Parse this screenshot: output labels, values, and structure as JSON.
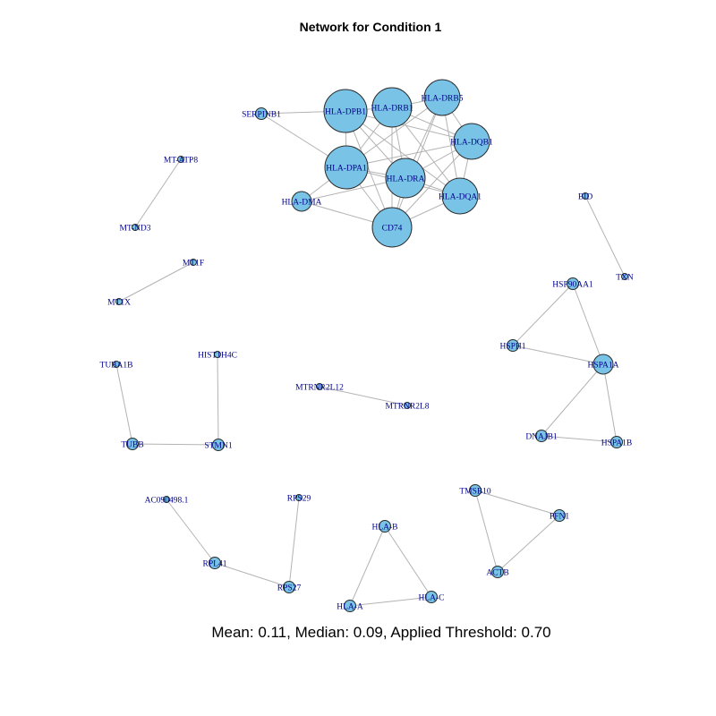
{
  "title": "Network for Condition 1",
  "caption": "Mean: 0.11, Median: 0.09, Applied Threshold: 0.70",
  "colors": {
    "node_fill": "#79c3e6",
    "node_stroke": "#2b2b2b",
    "edge": "#b3b3b3",
    "label": "#00008b"
  },
  "nodes": [
    {
      "id": "HLA-DPB1",
      "label": "HLA-DPB1",
      "size": "xl"
    },
    {
      "id": "HLA-DRB1",
      "label": "HLA-DRB1",
      "size": "lg"
    },
    {
      "id": "HLA-DRB5",
      "label": "HLA-DRB5",
      "size": "md"
    },
    {
      "id": "HLA-DQB1",
      "label": "HLA-DQB1",
      "size": "md"
    },
    {
      "id": "HLA-DPA1",
      "label": "HLA-DPA1",
      "size": "xl"
    },
    {
      "id": "HLA-DRA",
      "label": "HLA-DRA",
      "size": "lg"
    },
    {
      "id": "HLA-DQA1",
      "label": "HLA-DQA1",
      "size": "md"
    },
    {
      "id": "CD74",
      "label": "CD74",
      "size": "lg"
    },
    {
      "id": "HLA-DMA",
      "label": "HLA-DMA",
      "size": "sm"
    },
    {
      "id": "SERPINB1",
      "label": "SERPINB1",
      "size": "xs"
    },
    {
      "id": "MT-ATP8",
      "label": "MT-ATP8",
      "size": "xxs"
    },
    {
      "id": "MT-ND3",
      "label": "MT-ND3",
      "size": "xxs"
    },
    {
      "id": "MT1F",
      "label": "MT1F",
      "size": "xxs"
    },
    {
      "id": "MT1X",
      "label": "MT1X",
      "size": "xxs"
    },
    {
      "id": "BID",
      "label": "BID",
      "size": "xxs"
    },
    {
      "id": "TXN",
      "label": "TXN",
      "size": "xxs"
    },
    {
      "id": "HSP90AA1",
      "label": "HSP90AA1",
      "size": "xs"
    },
    {
      "id": "HSPH1",
      "label": "HSPH1",
      "size": "xs"
    },
    {
      "id": "HSPA1A",
      "label": "HSPA1A",
      "size": "sm"
    },
    {
      "id": "DNAJB1",
      "label": "DNAJB1",
      "size": "xs"
    },
    {
      "id": "HSPA1B",
      "label": "HSPA1B",
      "size": "xs"
    },
    {
      "id": "TUBA1B",
      "label": "TUBA1B",
      "size": "xxs"
    },
    {
      "id": "HIST1H4C",
      "label": "HIST1H4C",
      "size": "xxs"
    },
    {
      "id": "TUBB",
      "label": "TUBB",
      "size": "xs"
    },
    {
      "id": "STMN1",
      "label": "STMN1",
      "size": "xs"
    },
    {
      "id": "MTRNR2L12",
      "label": "MTRNR2L12",
      "size": "xxs"
    },
    {
      "id": "MTRNR2L8",
      "label": "MTRNR2L8",
      "size": "xxs"
    },
    {
      "id": "AC090498.1",
      "label": "AC090498.1",
      "size": "xxs"
    },
    {
      "id": "RPS29",
      "label": "RPS29",
      "size": "xxs"
    },
    {
      "id": "RPL41",
      "label": "RPL41",
      "size": "xs"
    },
    {
      "id": "RPS27",
      "label": "RPS27",
      "size": "xs"
    },
    {
      "id": "HLA-B",
      "label": "HLA-B",
      "size": "xs"
    },
    {
      "id": "HLA-A",
      "label": "HLA-A",
      "size": "xs"
    },
    {
      "id": "HLA-C",
      "label": "HLA-C",
      "size": "xs"
    },
    {
      "id": "TMSB10",
      "label": "TMSB10",
      "size": "xs"
    },
    {
      "id": "PFN1",
      "label": "PFN1",
      "size": "xs"
    },
    {
      "id": "ACTB",
      "label": "ACTB",
      "size": "xs"
    }
  ],
  "edges": [
    [
      "SERPINB1",
      "HLA-DPB1"
    ],
    [
      "SERPINB1",
      "HLA-DPA1"
    ],
    [
      "HLA-DPB1",
      "HLA-DRB1"
    ],
    [
      "HLA-DPB1",
      "HLA-DPA1"
    ],
    [
      "HLA-DPB1",
      "HLA-DRA"
    ],
    [
      "HLA-DPB1",
      "HLA-DQB1"
    ],
    [
      "HLA-DPB1",
      "HLA-DQA1"
    ],
    [
      "HLA-DPB1",
      "CD74"
    ],
    [
      "HLA-DRB1",
      "HLA-DRB5"
    ],
    [
      "HLA-DRB1",
      "HLA-DQB1"
    ],
    [
      "HLA-DRB1",
      "HLA-DPA1"
    ],
    [
      "HLA-DRB1",
      "HLA-DRA"
    ],
    [
      "HLA-DRB1",
      "HLA-DQA1"
    ],
    [
      "HLA-DRB1",
      "CD74"
    ],
    [
      "HLA-DRB5",
      "HLA-DQB1"
    ],
    [
      "HLA-DRB5",
      "HLA-DPA1"
    ],
    [
      "HLA-DRB5",
      "HLA-DRA"
    ],
    [
      "HLA-DRB5",
      "HLA-DQA1"
    ],
    [
      "HLA-DRB5",
      "CD74"
    ],
    [
      "HLA-DQB1",
      "HLA-DPA1"
    ],
    [
      "HLA-DQB1",
      "HLA-DRA"
    ],
    [
      "HLA-DQB1",
      "HLA-DQA1"
    ],
    [
      "HLA-DQB1",
      "CD74"
    ],
    [
      "HLA-DPA1",
      "HLA-DRA"
    ],
    [
      "HLA-DPA1",
      "HLA-DQA1"
    ],
    [
      "HLA-DPA1",
      "CD74"
    ],
    [
      "HLA-DPA1",
      "HLA-DMA"
    ],
    [
      "HLA-DRA",
      "HLA-DQA1"
    ],
    [
      "HLA-DRA",
      "CD74"
    ],
    [
      "HLA-DRA",
      "HLA-DMA"
    ],
    [
      "HLA-DQA1",
      "CD74"
    ],
    [
      "HLA-DMA",
      "CD74"
    ],
    [
      "MT-ATP8",
      "MT-ND3"
    ],
    [
      "MT1F",
      "MT1X"
    ],
    [
      "BID",
      "TXN"
    ],
    [
      "HSP90AA1",
      "HSPH1"
    ],
    [
      "HSP90AA1",
      "HSPA1A"
    ],
    [
      "HSPH1",
      "HSPA1A"
    ],
    [
      "HSPA1A",
      "DNAJB1"
    ],
    [
      "HSPA1A",
      "HSPA1B"
    ],
    [
      "DNAJB1",
      "HSPA1B"
    ],
    [
      "TUBA1B",
      "TUBB"
    ],
    [
      "TUBB",
      "STMN1"
    ],
    [
      "HIST1H4C",
      "STMN1"
    ],
    [
      "MTRNR2L12",
      "MTRNR2L8"
    ],
    [
      "AC090498.1",
      "RPL41"
    ],
    [
      "RPL41",
      "RPS27"
    ],
    [
      "RPS29",
      "RPS27"
    ],
    [
      "HLA-B",
      "HLA-A"
    ],
    [
      "HLA-B",
      "HLA-C"
    ],
    [
      "HLA-A",
      "HLA-C"
    ],
    [
      "TMSB10",
      "PFN1"
    ],
    [
      "TMSB10",
      "ACTB"
    ],
    [
      "PFN1",
      "ACTB"
    ]
  ]
}
